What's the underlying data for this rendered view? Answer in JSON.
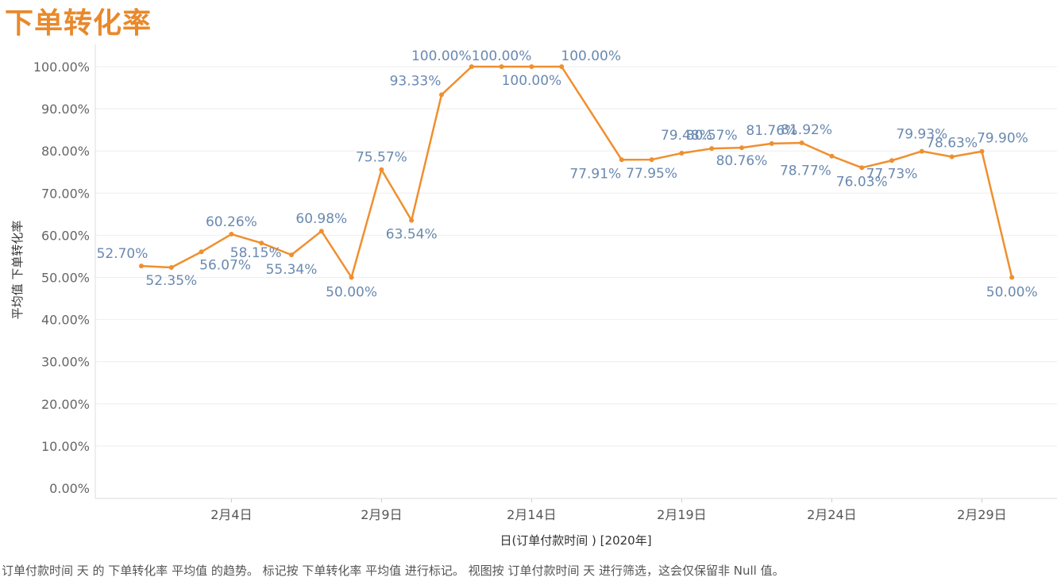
{
  "title": "下单转化率",
  "caption": "订单付款时间 天 的 下单转化率 平均值 的趋势。 标记按 下单转化率 平均值 进行标记。 视图按 订单付款时间 天 进行筛选，这会仅保留非 Null 值。",
  "colors": {
    "line": "#ef8f2f",
    "title": "#e8892b",
    "label": "#6a89b0",
    "grid": "#eeeeee"
  },
  "chart_data": {
    "type": "line",
    "title": "下单转化率",
    "xlabel": "日(订单付款时间 ) [2020年]",
    "ylabel": "平均值 下单转化率",
    "ylim": [
      0,
      100
    ],
    "yticks": [
      0,
      10,
      20,
      30,
      40,
      50,
      60,
      70,
      80,
      90,
      100
    ],
    "ytick_labels": [
      "0.00%",
      "10.00%",
      "20.00%",
      "30.00%",
      "40.00%",
      "50.00%",
      "60.00%",
      "70.00%",
      "80.00%",
      "90.00%",
      "100.00%"
    ],
    "xticks": [
      4,
      9,
      14,
      19,
      24,
      29
    ],
    "xtick_labels": [
      "2月4日",
      "2月9日",
      "2月14日",
      "2月19日",
      "2月24日",
      "2月29日"
    ],
    "series": [
      {
        "name": "平均值 下单转化率",
        "points": [
          {
            "day": 1,
            "value": 52.7,
            "label": "52.70%"
          },
          {
            "day": 2,
            "value": 52.35,
            "label": "52.35%"
          },
          {
            "day": 3,
            "value": 56.07,
            "label": "56.07%"
          },
          {
            "day": 4,
            "value": 60.26,
            "label": "60.26%"
          },
          {
            "day": 5,
            "value": 58.15,
            "label": "58.15%"
          },
          {
            "day": 6,
            "value": 55.34,
            "label": "55.34%"
          },
          {
            "day": 7,
            "value": 60.98,
            "label": "60.98%"
          },
          {
            "day": 8,
            "value": 50.0,
            "label": "50.00%"
          },
          {
            "day": 9,
            "value": 75.57,
            "label": "75.57%"
          },
          {
            "day": 10,
            "value": 63.54,
            "label": "63.54%"
          },
          {
            "day": 11,
            "value": 93.33,
            "label": "93.33%"
          },
          {
            "day": 12,
            "value": 100.0,
            "label": "100.00%"
          },
          {
            "day": 13,
            "value": 100.0,
            "label": "100.00%"
          },
          {
            "day": 14,
            "value": 100.0,
            "label": "100.00%"
          },
          {
            "day": 15,
            "value": 100.0,
            "label": "100.00%"
          },
          {
            "day": 17,
            "value": 77.91,
            "label": "77.91%"
          },
          {
            "day": 18,
            "value": 77.95,
            "label": "77.95%"
          },
          {
            "day": 19,
            "value": 79.48,
            "label": "79.48%"
          },
          {
            "day": 20,
            "value": 80.57,
            "label": "80.57%"
          },
          {
            "day": 21,
            "value": 80.76,
            "label": "80.76%"
          },
          {
            "day": 22,
            "value": 81.76,
            "label": "81.76%"
          },
          {
            "day": 23,
            "value": 81.92,
            "label": "81.92%"
          },
          {
            "day": 24,
            "value": 78.77,
            "label": "78.77%"
          },
          {
            "day": 25,
            "value": 76.03,
            "label": "76.03%"
          },
          {
            "day": 26,
            "value": 77.73,
            "label": "77.73%"
          },
          {
            "day": 27,
            "value": 79.93,
            "label": "79.93%"
          },
          {
            "day": 28,
            "value": 78.63,
            "label": "78.63%"
          },
          {
            "day": 29,
            "value": 79.9,
            "label": "79.90%"
          },
          {
            "day": 30,
            "value": 50.0,
            "label": "50.00%"
          }
        ]
      }
    ]
  }
}
